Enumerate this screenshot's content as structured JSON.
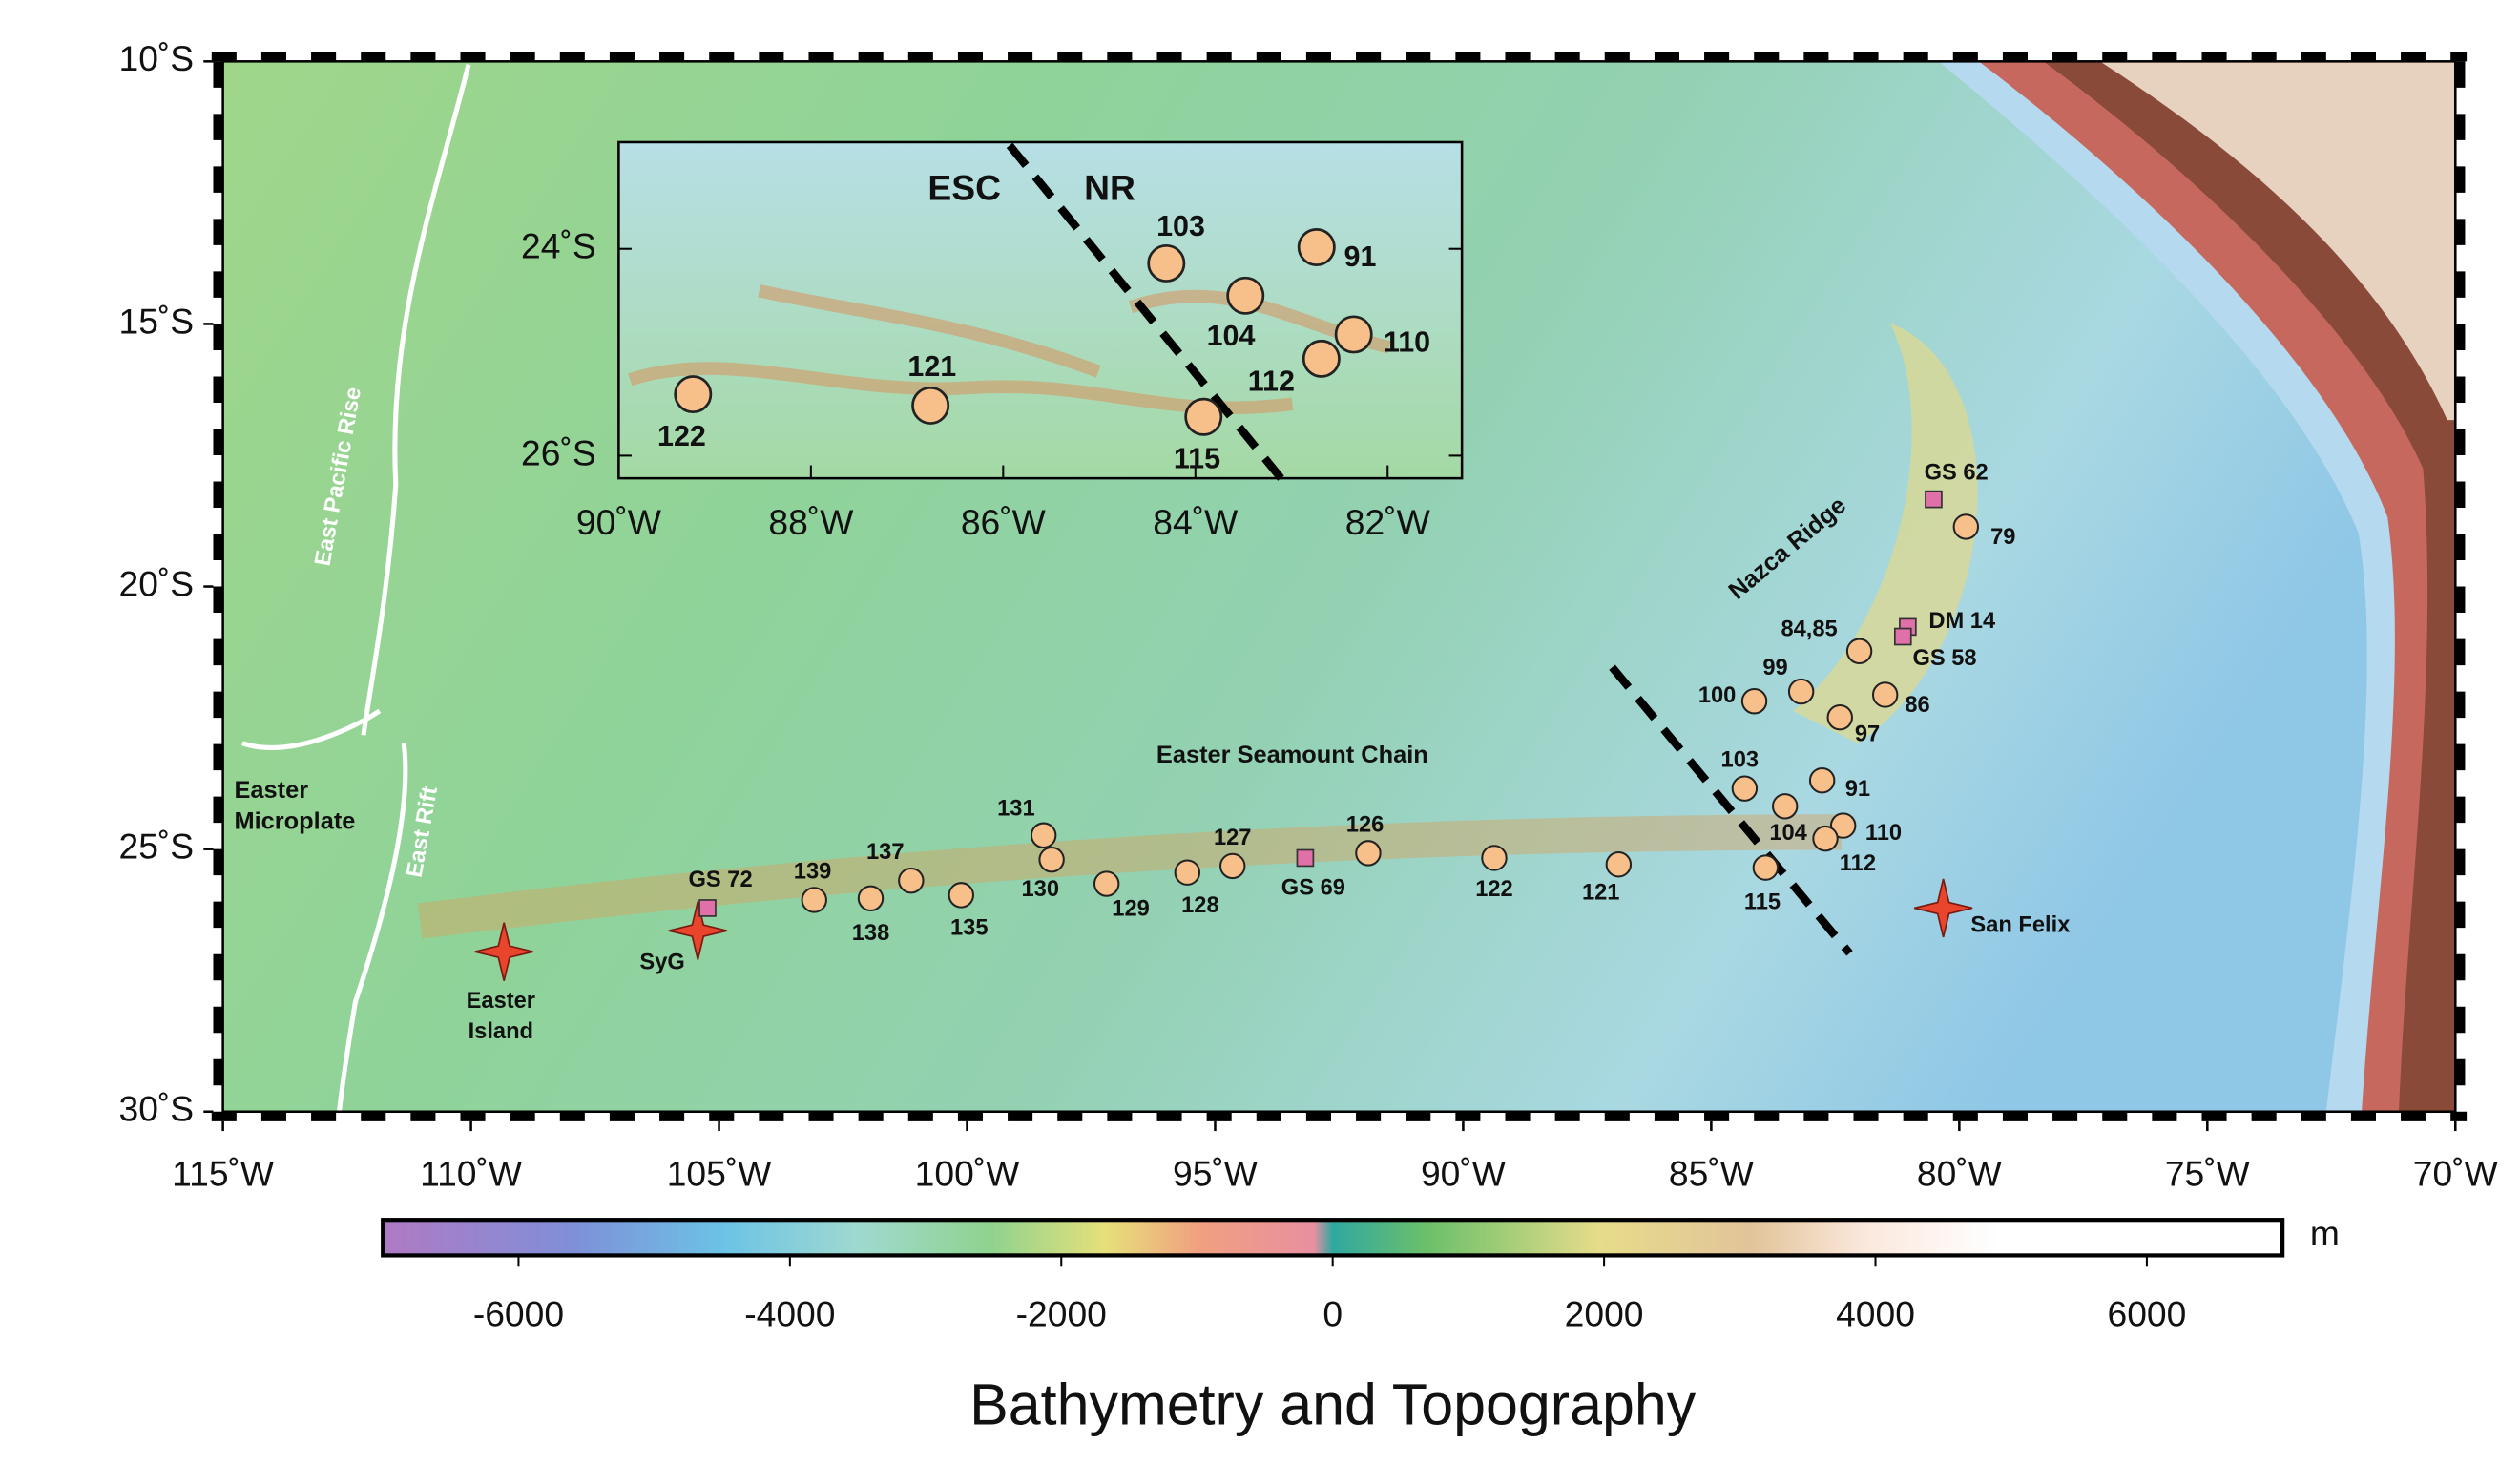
{
  "map": {
    "lon_ticks": [
      {
        "value": -115,
        "label": "115˚W"
      },
      {
        "value": -110,
        "label": "110˚W"
      },
      {
        "value": -105,
        "label": "105˚W"
      },
      {
        "value": -100,
        "label": "100˚W"
      },
      {
        "value": -95,
        "label": "95˚W"
      },
      {
        "value": -90,
        "label": "90˚W"
      },
      {
        "value": -85,
        "label": "85˚W"
      },
      {
        "value": -80,
        "label": "80˚W"
      },
      {
        "value": -75,
        "label": "75˚W"
      },
      {
        "value": -70,
        "label": "70˚W"
      }
    ],
    "lat_ticks": [
      {
        "value": -10,
        "label": "10˚S"
      },
      {
        "value": -15,
        "label": "15˚S"
      },
      {
        "value": -20,
        "label": "20˚S"
      },
      {
        "value": -25,
        "label": "25˚S"
      },
      {
        "value": -30,
        "label": "30˚S"
      }
    ],
    "features": [
      "East Pacific Rise",
      "East Rift",
      [
        "Easter",
        "Microplate"
      ],
      "Easter Seamount Chain",
      "Nazca Ridge"
    ],
    "volcanoes": [
      [
        "Easter",
        "Island"
      ],
      "SyG",
      "San Felix"
    ],
    "samples": [
      "79",
      "84,85",
      "99",
      "100",
      "86",
      "97",
      "103",
      "91",
      "104",
      "110",
      "112",
      "115",
      "121",
      "122",
      "126",
      "127",
      "128",
      "129",
      "130",
      "131",
      "135",
      "137",
      "138",
      "139"
    ],
    "reference_samples": [
      "GS 62",
      "DM 14",
      "GS 58",
      "GS 69",
      "GS 72"
    ]
  },
  "inset": {
    "lon_ticks": [
      {
        "value": -90,
        "label": "90˚W"
      },
      {
        "value": -88,
        "label": "88˚W"
      },
      {
        "value": -86,
        "label": "86˚W"
      },
      {
        "value": -84,
        "label": "84˚W"
      },
      {
        "value": -82,
        "label": "82˚W"
      }
    ],
    "lat_ticks": [
      {
        "value": -24,
        "label": "24˚S"
      },
      {
        "value": -26,
        "label": "26˚S"
      }
    ],
    "labels": [
      "ESC",
      "NR"
    ],
    "samples": [
      "122",
      "121",
      "103",
      "91",
      "104",
      "110",
      "112",
      "115"
    ]
  },
  "colorbar": {
    "range": [
      -7000,
      7000
    ],
    "ticks": [
      -6000,
      -4000,
      -2000,
      0,
      2000,
      4000,
      6000
    ],
    "unit": "m",
    "title": "Bathymetry and Topography"
  }
}
